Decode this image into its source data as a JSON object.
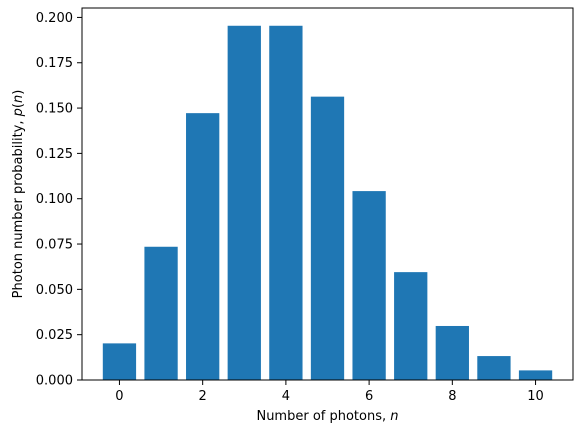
{
  "chart_data": {
    "type": "bar",
    "x": [
      0,
      1,
      2,
      3,
      4,
      5,
      6,
      7,
      8,
      9,
      10
    ],
    "values": [
      0.0202,
      0.0735,
      0.1472,
      0.1954,
      0.1954,
      0.1563,
      0.1042,
      0.0595,
      0.0298,
      0.0132,
      0.0053
    ],
    "bar_color": "#1f77b4",
    "xlabel": {
      "text": "Number of photons, ",
      "var": "n"
    },
    "ylabel": {
      "text": "Photon number probability, ",
      "var": "p",
      "arg_open": "(",
      "arg": "n",
      "arg_close": ")"
    },
    "xlim": [
      -0.9,
      10.9
    ],
    "ylim": [
      0,
      0.2052
    ],
    "xticks": [
      0,
      2,
      4,
      6,
      8,
      10
    ],
    "xtick_labels": [
      "0",
      "2",
      "4",
      "6",
      "8",
      "10"
    ],
    "yticks": [
      0,
      0.025,
      0.05,
      0.075,
      0.1,
      0.125,
      0.15,
      0.175,
      0.2
    ],
    "ytick_labels": [
      "0.000",
      "0.025",
      "0.050",
      "0.075",
      "0.100",
      "0.125",
      "0.150",
      "0.175",
      "0.200"
    ],
    "grid": false,
    "legend": false
  }
}
